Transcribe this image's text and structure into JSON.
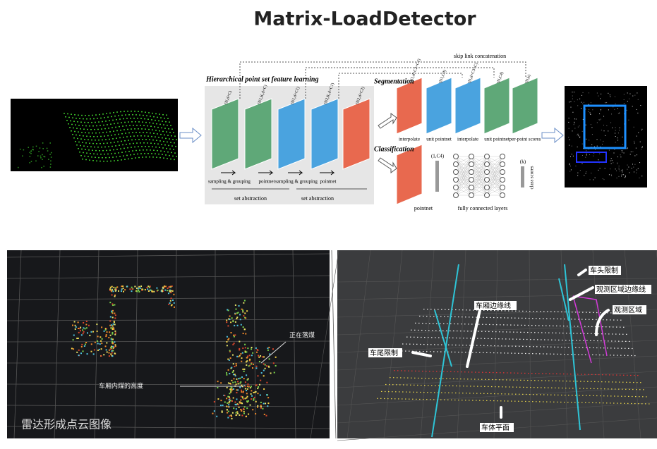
{
  "title": "Matrix-LoadDetector",
  "architecture": {
    "heading": "Hierarchical point set feature learning",
    "skip_link": "skip link concatenation",
    "segmentation": "Segmentation",
    "classification": "Classification",
    "abstraction_labels": [
      "set abstraction",
      "set abstraction"
    ],
    "step_labels": [
      "sampling & grouping",
      "pointnet",
      "sampling & grouping",
      "pointnet"
    ],
    "layer_shapes": [
      "(N,d+C)",
      "(N1,K,d+C)",
      "(N1,d+C1)",
      "(N2,K,d+C1)",
      "(N2,d+C2)"
    ],
    "segmentation_shapes": [
      "(N1,d+C2+C1)",
      "(N1,C3)",
      "(N,d+C3+C)",
      "(N,C4)",
      "(N,k)"
    ],
    "segmentation_steps": [
      "interpolate",
      "unit pointnet",
      "interpolate",
      "unit pointnet",
      "per-point scores"
    ],
    "classification_shapes": [
      "(1,C4)",
      "(k)"
    ],
    "classification_steps": [
      "pointnet",
      "fully connected layers",
      "class scores"
    ]
  },
  "lidar_view": {
    "annotations": [
      "正在落煤",
      "车厢内煤的高度"
    ],
    "caption": "雷达形成点云图像"
  },
  "region_view": {
    "labels": [
      "车头限制",
      "观测区域边缘线",
      "观测区域",
      "车厢边缘线",
      "车尾限制",
      "车体平面"
    ]
  }
}
